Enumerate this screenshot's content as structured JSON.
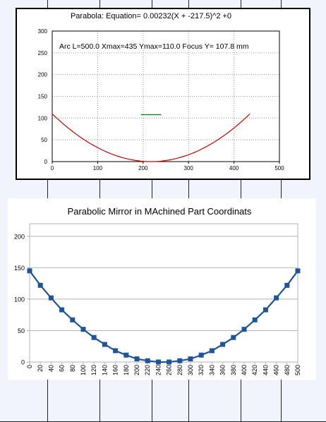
{
  "chart_data": [
    {
      "type": "line",
      "title": "Parabola:  Equation= 0.00232(X + -217.5)^2 +0",
      "annotation": "Arc L=500.0 Xmax=435 Ymax=110.0 Focus Y= 107.8 mm",
      "xlim": [
        0,
        500
      ],
      "ylim": [
        0,
        300
      ],
      "x_ticks": [
        0,
        100,
        200,
        300,
        400,
        500
      ],
      "y_ticks": [
        0,
        50,
        100,
        150,
        200,
        250,
        300
      ],
      "grid": true,
      "series": [
        {
          "color": "#cc0000",
          "equation": {
            "a": 0.00232,
            "h": 217.5,
            "k": 0
          },
          "x_range": [
            0,
            435
          ]
        },
        {
          "color": "#008000",
          "x": [
            195,
            240
          ],
          "y": [
            107.8,
            107.8
          ]
        }
      ]
    },
    {
      "type": "line",
      "title": "Parabolic Mirror in MAchined Part Coordinats",
      "xlim": [
        0,
        500
      ],
      "ylim": [
        0,
        220
      ],
      "y_ticks": [
        0,
        50,
        100,
        150,
        200
      ],
      "categories": [
        "0",
        "20",
        "40",
        "60",
        "80",
        "100",
        "120",
        "140",
        "160",
        "180",
        "200",
        "220",
        "240",
        "260",
        "280",
        "300",
        "320",
        "340",
        "360",
        "380",
        "400",
        "420",
        "440",
        "460",
        "480",
        "500"
      ],
      "series": [
        {
          "color": "#1f5597",
          "marker": "square",
          "values": [
            145,
            122,
            102,
            83,
            67,
            52,
            39,
            28,
            18,
            11,
            5,
            2,
            0,
            0,
            2,
            5,
            11,
            18,
            28,
            39,
            52,
            67,
            83,
            102,
            122,
            145
          ]
        }
      ]
    }
  ]
}
